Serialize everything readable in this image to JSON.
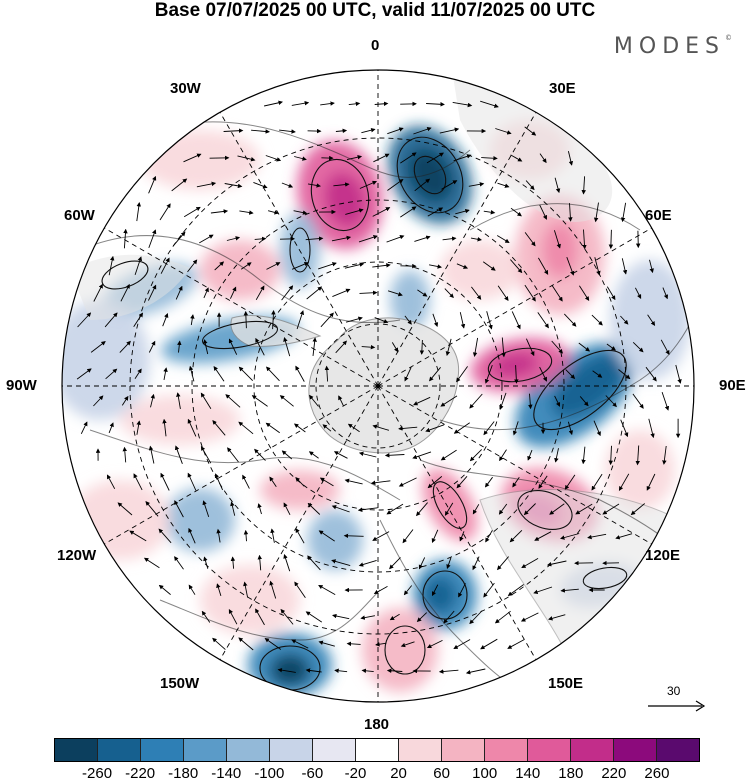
{
  "title": "Base 07/07/2025 00 UTC, valid 11/07/2025 00 UTC",
  "brand": "MODES",
  "brand_mark": "©",
  "longitude_labels": {
    "top": "0",
    "bottom": "180",
    "left": "90W",
    "right": "90E",
    "nw30": "30W",
    "nw60": "60W",
    "ne30": "30E",
    "ne60": "60E",
    "sw120": "120W",
    "sw150": "150W",
    "se120": "120E",
    "se150": "150E"
  },
  "vector_reference": {
    "label": "30"
  },
  "colorbar": {
    "labels": [
      "-260",
      "-220",
      "-180",
      "-140",
      "-100",
      "-60",
      "-20",
      "20",
      "60",
      "100",
      "140",
      "180",
      "220",
      "260"
    ],
    "colors": [
      "#0c3f5e",
      "#16608f",
      "#2e7fb5",
      "#5b9bc8",
      "#93b9d8",
      "#c8d4e8",
      "#e7e7f2",
      "#ffffff",
      "#f8d8dc",
      "#f4b4c2",
      "#ee87aa",
      "#e05a9a",
      "#c22d8a",
      "#8c0a7c",
      "#5a0a6e"
    ]
  },
  "colors": {
    "land": "#e3e3e3",
    "coast": "#8a8a8a",
    "vectors": "#000000",
    "grid": "#000000"
  }
}
